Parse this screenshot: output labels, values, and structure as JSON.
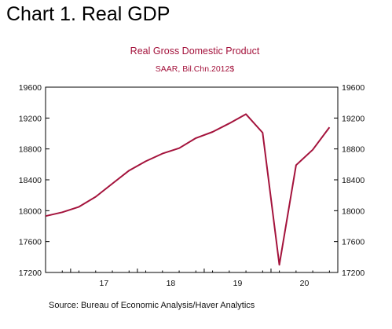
{
  "heading": "Chart 1.  Real GDP",
  "chart_data": {
    "type": "line",
    "title": "Real Gross Domestic Product",
    "subtitle": "SAAR, Bil.Chn.2012$",
    "source": "Source:  Bureau of Economic Analysis/Haver Analytics",
    "ylim": [
      17200,
      19600
    ],
    "yticks": [
      "19600",
      "19200",
      "18800",
      "18400",
      "18000",
      "17600",
      "17200"
    ],
    "year_labels": [
      "17",
      "18",
      "19",
      "20"
    ],
    "grid": false,
    "series": [
      {
        "color": "#a4133c",
        "x": [
          "2016Q3",
          "2016Q4",
          "2017Q1",
          "2017Q2",
          "2017Q3",
          "2017Q4",
          "2018Q1",
          "2018Q2",
          "2018Q3",
          "2018Q4",
          "2019Q1",
          "2019Q2",
          "2019Q3",
          "2019Q4",
          "2020Q1",
          "2020Q2",
          "2020Q3",
          "2020Q4"
        ],
        "values": [
          17930,
          17980,
          18050,
          18180,
          18350,
          18520,
          18640,
          18740,
          18810,
          18940,
          19020,
          19130,
          19250,
          19010,
          17300,
          18590,
          18790,
          19080
        ]
      }
    ]
  }
}
